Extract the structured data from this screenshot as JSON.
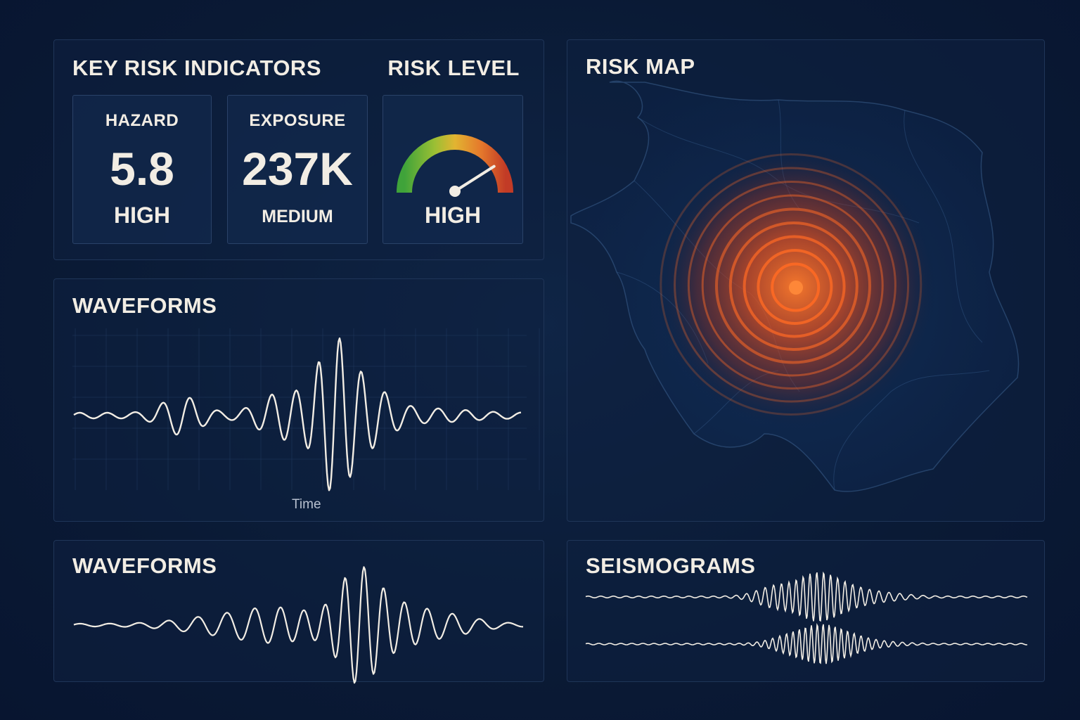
{
  "kri": {
    "title": "KEY RISK INDICATORS",
    "risk_level_title": "RISK LEVEL",
    "cards": [
      {
        "label": "HAZARD",
        "value": "5.8",
        "level": "HIGH"
      },
      {
        "label": "EXPOSURE",
        "value": "237K",
        "level": "MEDIUM"
      }
    ],
    "gauge": {
      "level": "HIGH",
      "fraction": 0.82
    }
  },
  "waveforms_top": {
    "title": "WAVEFORMS",
    "xlabel": "Time"
  },
  "waveforms_bottom": {
    "title": "WAVEFORMS"
  },
  "risk_map": {
    "title": "RISK MAP"
  },
  "seismograms": {
    "title": "SEISMOGRAMS"
  },
  "colors": {
    "background": "#0a1a35",
    "panel_border": "#1f3558",
    "text": "#f2ede4",
    "gauge_green": "#3fa33a",
    "gauge_yellow": "#e2b431",
    "gauge_orange": "#e57a2c",
    "gauge_red": "#c23b26",
    "hotspot": "#ff5a1f"
  }
}
